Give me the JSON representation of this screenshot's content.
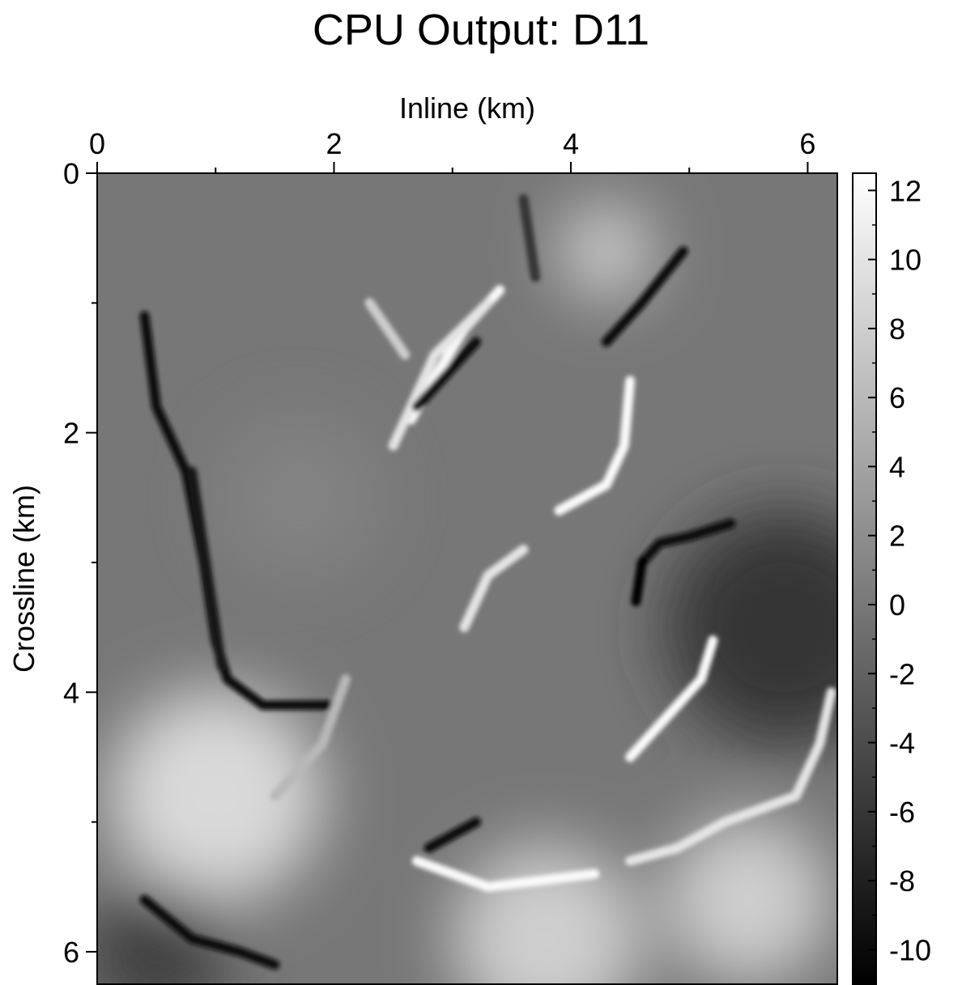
{
  "chart_data": {
    "type": "heatmap",
    "title": "CPU Output: D11",
    "xlabel": "Inline (km)",
    "ylabel": "Crossline (km)",
    "x_axis_position": "top",
    "xlim": [
      0,
      6.25
    ],
    "ylim": [
      0,
      6.25
    ],
    "y_inverted": true,
    "x_ticks": [
      0,
      2,
      4,
      6
    ],
    "x_minor_ticks": [
      1,
      3,
      5
    ],
    "y_ticks": [
      0,
      2,
      4,
      6
    ],
    "y_minor_ticks": [
      1,
      3,
      5
    ],
    "colormap": "grayscale",
    "colorbar": {
      "range": [
        -11,
        12.5
      ],
      "ticks": [
        12,
        10,
        8,
        6,
        4,
        2,
        0,
        -2,
        -4,
        -6,
        -8,
        -10
      ],
      "low_color": "#000000",
      "high_color": "#ffffff"
    },
    "background_level": 0,
    "features": [
      {
        "points": [
          [
            0.4,
            1.1
          ],
          [
            0.5,
            1.8
          ],
          [
            0.75,
            2.3
          ],
          [
            0.9,
            3.0
          ],
          [
            1.0,
            3.6
          ],
          [
            1.1,
            3.9
          ],
          [
            1.4,
            4.1
          ],
          [
            2.0,
            4.1
          ]
        ],
        "value": -10
      },
      {
        "points": [
          [
            0.8,
            2.3
          ],
          [
            0.95,
            3.2
          ],
          [
            1.05,
            3.8
          ]
        ],
        "value": -9
      },
      {
        "points": [
          [
            2.65,
            1.9
          ],
          [
            2.9,
            1.5
          ],
          [
            3.1,
            1.2
          ],
          [
            3.4,
            0.9
          ]
        ],
        "value": 12
      },
      {
        "points": [
          [
            2.5,
            2.1
          ],
          [
            2.85,
            1.4
          ],
          [
            3.3,
            1.0
          ]
        ],
        "value": 10
      },
      {
        "points": [
          [
            2.7,
            1.8
          ],
          [
            3.2,
            1.3
          ]
        ],
        "value": -10
      },
      {
        "points": [
          [
            4.3,
            1.3
          ],
          [
            4.6,
            1.0
          ],
          [
            4.95,
            0.6
          ]
        ],
        "value": -10
      },
      {
        "points": [
          [
            3.9,
            2.6
          ],
          [
            4.3,
            2.4
          ],
          [
            4.45,
            2.1
          ],
          [
            4.5,
            1.6
          ]
        ],
        "value": 12
      },
      {
        "points": [
          [
            4.6,
            3.0
          ],
          [
            4.75,
            2.85
          ],
          [
            5.0,
            2.8
          ],
          [
            5.35,
            2.7
          ]
        ],
        "value": -10
      },
      {
        "points": [
          [
            4.55,
            3.3
          ],
          [
            4.6,
            3.0
          ]
        ],
        "value": -11
      },
      {
        "points": [
          [
            4.5,
            4.5
          ],
          [
            4.8,
            4.2
          ],
          [
            5.1,
            3.9
          ],
          [
            5.2,
            3.6
          ]
        ],
        "value": 12
      },
      {
        "points": [
          [
            4.5,
            5.3
          ],
          [
            4.9,
            5.2
          ],
          [
            5.3,
            5.0
          ],
          [
            5.9,
            4.8
          ],
          [
            6.1,
            4.4
          ],
          [
            6.2,
            4.0
          ]
        ],
        "value": 10
      },
      {
        "points": [
          [
            2.7,
            5.3
          ],
          [
            3.3,
            5.5
          ],
          [
            4.2,
            5.4
          ]
        ],
        "value": 12
      },
      {
        "points": [
          [
            2.8,
            5.2
          ],
          [
            3.2,
            5.0
          ]
        ],
        "value": -10
      },
      {
        "points": [
          [
            0.4,
            5.6
          ],
          [
            0.8,
            5.9
          ],
          [
            1.2,
            6.0
          ],
          [
            1.5,
            6.1
          ]
        ],
        "value": -10
      },
      {
        "points": [
          [
            1.5,
            4.8
          ],
          [
            1.9,
            4.4
          ],
          [
            2.1,
            3.9
          ]
        ],
        "value": 6
      },
      {
        "points": [
          [
            3.1,
            3.5
          ],
          [
            3.3,
            3.1
          ],
          [
            3.6,
            2.9
          ]
        ],
        "value": 10
      },
      {
        "points": [
          [
            2.3,
            1.0
          ],
          [
            2.6,
            1.4
          ]
        ],
        "value": 8
      },
      {
        "points": [
          [
            3.6,
            0.2
          ],
          [
            3.7,
            0.8
          ]
        ],
        "value": -6
      }
    ],
    "blobs": [
      {
        "center": [
          1.0,
          4.8
        ],
        "radius": 0.9,
        "value": 9
      },
      {
        "center": [
          3.8,
          5.9
        ],
        "radius": 0.8,
        "value": 8
      },
      {
        "center": [
          4.3,
          0.6
        ],
        "radius": 0.4,
        "value": 8
      },
      {
        "center": [
          5.8,
          3.5
        ],
        "radius": 1.0,
        "value": -6
      },
      {
        "center": [
          5.5,
          5.6
        ],
        "radius": 0.7,
        "value": 8
      },
      {
        "center": [
          0.5,
          6.0
        ],
        "radius": 0.6,
        "value": -5
      },
      {
        "center": [
          1.7,
          2.5
        ],
        "radius": 0.7,
        "value": 1
      }
    ]
  }
}
